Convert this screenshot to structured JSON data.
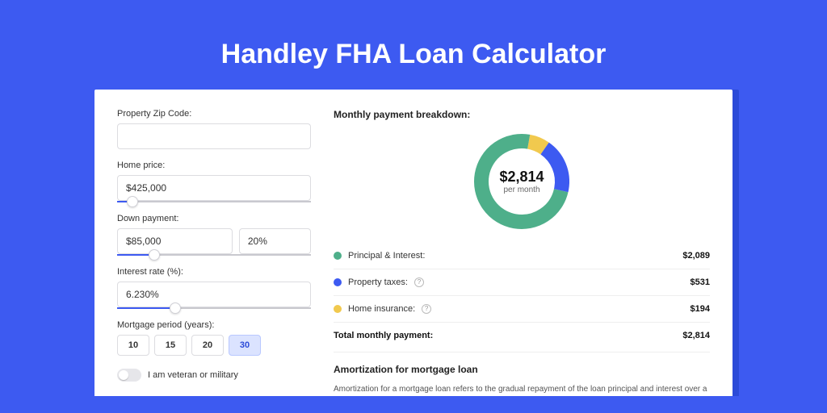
{
  "page": {
    "title": "Handley FHA Loan Calculator",
    "background_color": "#3d5af1",
    "shadow_color": "#2c4bd8",
    "card_background": "#ffffff"
  },
  "form": {
    "zip": {
      "label": "Property Zip Code:",
      "value": ""
    },
    "home_price": {
      "label": "Home price:",
      "value": "$425,000",
      "slider_percent": 8
    },
    "down_payment": {
      "label": "Down payment:",
      "amount": "$85,000",
      "percent": "20%",
      "slider_percent": 19
    },
    "interest": {
      "label": "Interest rate (%):",
      "value": "6.230%",
      "slider_percent": 30
    },
    "period": {
      "label": "Mortgage period (years):",
      "options": [
        "10",
        "15",
        "20",
        "30"
      ],
      "selected": "30"
    },
    "veteran": {
      "label": "I am veteran or military",
      "checked": false
    }
  },
  "breakdown": {
    "title": "Monthly payment breakdown:",
    "center_amount": "$2,814",
    "center_sub": "per month",
    "items": [
      {
        "label": "Principal & Interest:",
        "value": "$2,089",
        "color": "#4eaf8a",
        "has_info": false,
        "fraction": 0.742
      },
      {
        "label": "Property taxes:",
        "value": "$531",
        "color": "#3d5af1",
        "has_info": true,
        "fraction": 0.189
      },
      {
        "label": "Home insurance:",
        "value": "$194",
        "color": "#f1c94e",
        "has_info": true,
        "fraction": 0.069
      }
    ],
    "total_label": "Total monthly payment:",
    "total_value": "$2,814"
  },
  "amortization": {
    "title": "Amortization for mortgage loan",
    "text": "Amortization for a mortgage loan refers to the gradual repayment of the loan principal and interest over a specified"
  },
  "donut": {
    "stroke_width": 18,
    "radius": 50,
    "bg_color": "#ffffff"
  }
}
